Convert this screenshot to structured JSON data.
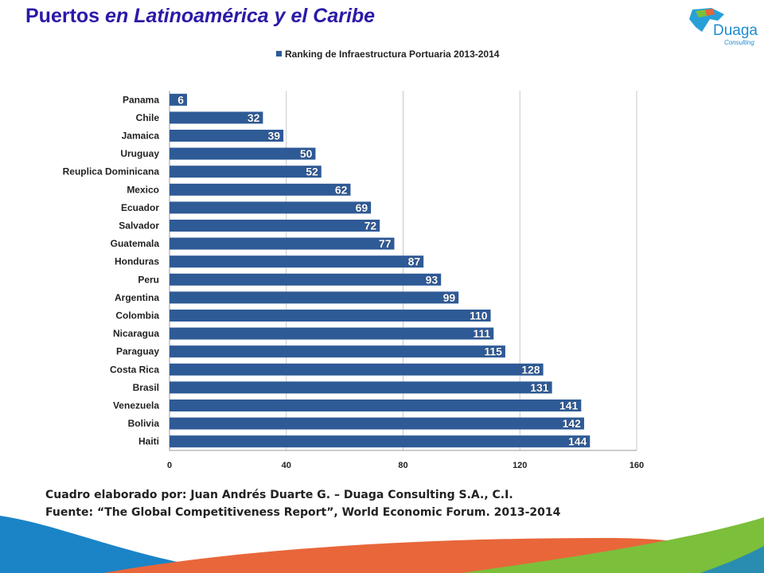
{
  "header": {
    "title_part1": "Puertos",
    "title_part2": "en Latinoamérica y el Caribe"
  },
  "logo": {
    "name": "Duaga",
    "subtitle": "Consulting",
    "icon": "duaga-map-logo"
  },
  "chart_data": {
    "type": "bar",
    "orientation": "horizontal",
    "categories": [
      "Panama",
      "Chile",
      "Jamaica",
      "Uruguay",
      "Reuplica Dominicana",
      "Mexico",
      "Ecuador",
      "Salvador",
      "Guatemala",
      "Honduras",
      "Peru",
      "Argentina",
      "Colombia",
      "Nicaragua",
      "Paraguay",
      "Costa Rica",
      "Brasil",
      "Venezuela",
      "Bolivia",
      "Haiti"
    ],
    "series": [
      {
        "name": "Ranking de Infraestructura Portuaria 2013-2014",
        "values": [
          6,
          32,
          39,
          50,
          52,
          62,
          69,
          72,
          77,
          87,
          93,
          99,
          110,
          111,
          115,
          128,
          131,
          141,
          142,
          144
        ]
      }
    ],
    "xlim": [
      0,
      160
    ],
    "xticks": [
      0,
      40,
      80,
      120,
      160
    ],
    "grid": true,
    "legend": "top",
    "bar_color": "#2e5a96",
    "label_color": "#ffffff"
  },
  "footer": {
    "credit": "Cuadro elaborado por: Juan Andrés Duarte  G. – Duaga Consulting S.A., C.I.",
    "source": "Fuente: “The Global Competitiveness Report”, World Economic Forum. 2013-2014"
  },
  "colors": {
    "wave_blue": "#1a84c7",
    "wave_orange": "#e8663a",
    "wave_green": "#7bbf3a"
  }
}
